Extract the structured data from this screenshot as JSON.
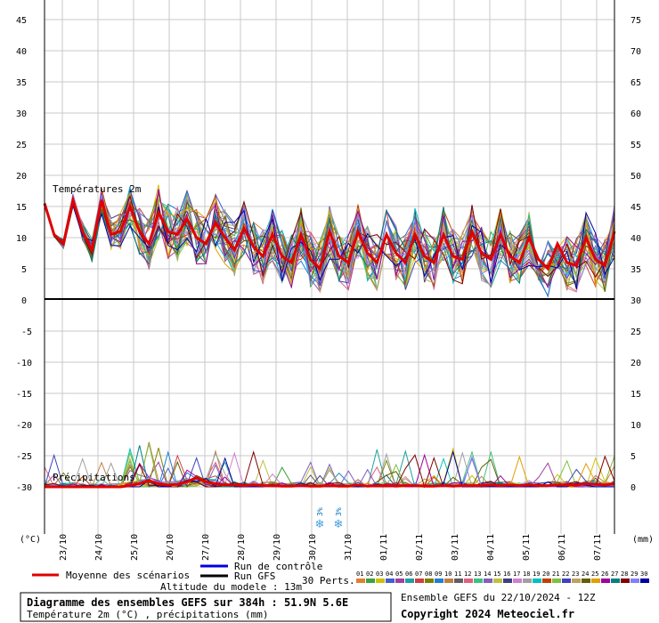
{
  "chart_data": {
    "type": "line",
    "panels": [
      {
        "title": "Températures 2m",
        "unit": "(°C)",
        "left_axis": [
          45,
          40,
          35,
          30,
          25,
          20,
          15,
          10,
          5,
          0
        ],
        "right_axis": [
          75,
          70,
          65,
          60,
          55,
          50,
          45,
          40,
          35,
          30
        ]
      },
      {
        "title": "Précipitations",
        "unit": "(mm)",
        "left_axis": [
          -5,
          -10,
          -15,
          -20,
          -25,
          -30
        ],
        "right_axis": [
          25,
          20,
          15,
          10,
          5,
          0
        ]
      }
    ],
    "x_dates": [
      "23/10",
      "24/10",
      "25/10",
      "26/10",
      "27/10",
      "28/10",
      "29/10",
      "30/10",
      "31/10",
      "01/11",
      "02/11",
      "03/11",
      "04/11",
      "05/11",
      "06/11",
      "07/11"
    ],
    "step_hours": 6,
    "mean_temperature": [
      15.5,
      10.5,
      9,
      16,
      11,
      8,
      16,
      10.5,
      11,
      15,
      11,
      9,
      14,
      11,
      10.5,
      13,
      10,
      9,
      12.5,
      10,
      8,
      11.5,
      8.5,
      7,
      10.5,
      7,
      6,
      10.5,
      6.5,
      5,
      11,
      7,
      6,
      11,
      7.5,
      6,
      10.5,
      7.5,
      6,
      10.5,
      7,
      6,
      10.5,
      7,
      6.5,
      11,
      7.5,
      6.5,
      10.5,
      7,
      6,
      10,
      6.5,
      5,
      9,
      6,
      5.5,
      10,
      6.5,
      5.5,
      11
    ],
    "mean_precipitation": [
      0,
      0,
      0,
      0,
      0,
      0,
      0,
      0,
      0,
      0.2,
      0.5,
      1,
      0.5,
      0.3,
      0.4,
      0.8,
      1.5,
      0.8,
      0.5,
      0.3,
      0.3,
      0.2,
      0.3,
      0.2,
      0.2,
      0.1,
      0.1,
      0.2,
      0.1,
      0.1,
      0.2,
      0.1,
      0.1,
      0.3,
      0.1,
      0.2,
      0.2,
      0.1,
      0.2,
      0.2,
      0.1,
      0.1,
      0.2,
      0.1,
      0.2,
      0.2,
      0.2,
      0.3,
      0.2,
      0.3,
      0.2,
      0.3,
      0.2,
      0.2,
      0.3,
      0.3,
      0.3,
      0.5,
      0.4,
      0.3,
      0.5
    ],
    "snow_markers": [
      {
        "day": "30/10",
        "pct": "3%"
      },
      {
        "day": "30/10",
        "pct": "3%"
      }
    ],
    "members": [
      "01",
      "02",
      "03",
      "04",
      "05",
      "06",
      "07",
      "08",
      "09",
      "10",
      "11",
      "12",
      "13",
      "14",
      "15",
      "16",
      "17",
      "18",
      "19",
      "20",
      "21",
      "22",
      "23",
      "24",
      "25",
      "26",
      "27",
      "28",
      "29",
      "30"
    ],
    "member_colors": [
      "#e08030",
      "#40a040",
      "#d0c000",
      "#4060d0",
      "#a040a0",
      "#20a0a0",
      "#d04040",
      "#808000",
      "#2080d0",
      "#c08040",
      "#606060",
      "#e06080",
      "#40c080",
      "#8060c0",
      "#c0c040",
      "#404080",
      "#d080d0",
      "#a0a0a0",
      "#00c0c0",
      "#c04000",
      "#80c040",
      "#4040c0",
      "#c0a060",
      "#606000",
      "#e0a000",
      "#a000a0",
      "#008080",
      "#800000",
      "#8080ff",
      "#0000a0"
    ],
    "series_legend": {
      "mean": {
        "label": "Moyenne des scénarios",
        "color": "#e00000"
      },
      "control": {
        "label": "Run de contrôle",
        "color": "#0000e0"
      },
      "gfs": {
        "label": "Run GFS",
        "color": "#000000"
      },
      "perts": {
        "label": "30 Perts."
      }
    }
  },
  "footer": {
    "altitude": "Altitude du modele : 13m",
    "title": "Diagramme des ensembles GEFS sur 384h : 51.9N 5.6E",
    "subtitle": "Température 2m (°C) , précipitations (mm)",
    "run": "Ensemble GEFS du 22/10/2024 - 12Z",
    "copyright": "Copyright 2024 Meteociel.fr"
  }
}
